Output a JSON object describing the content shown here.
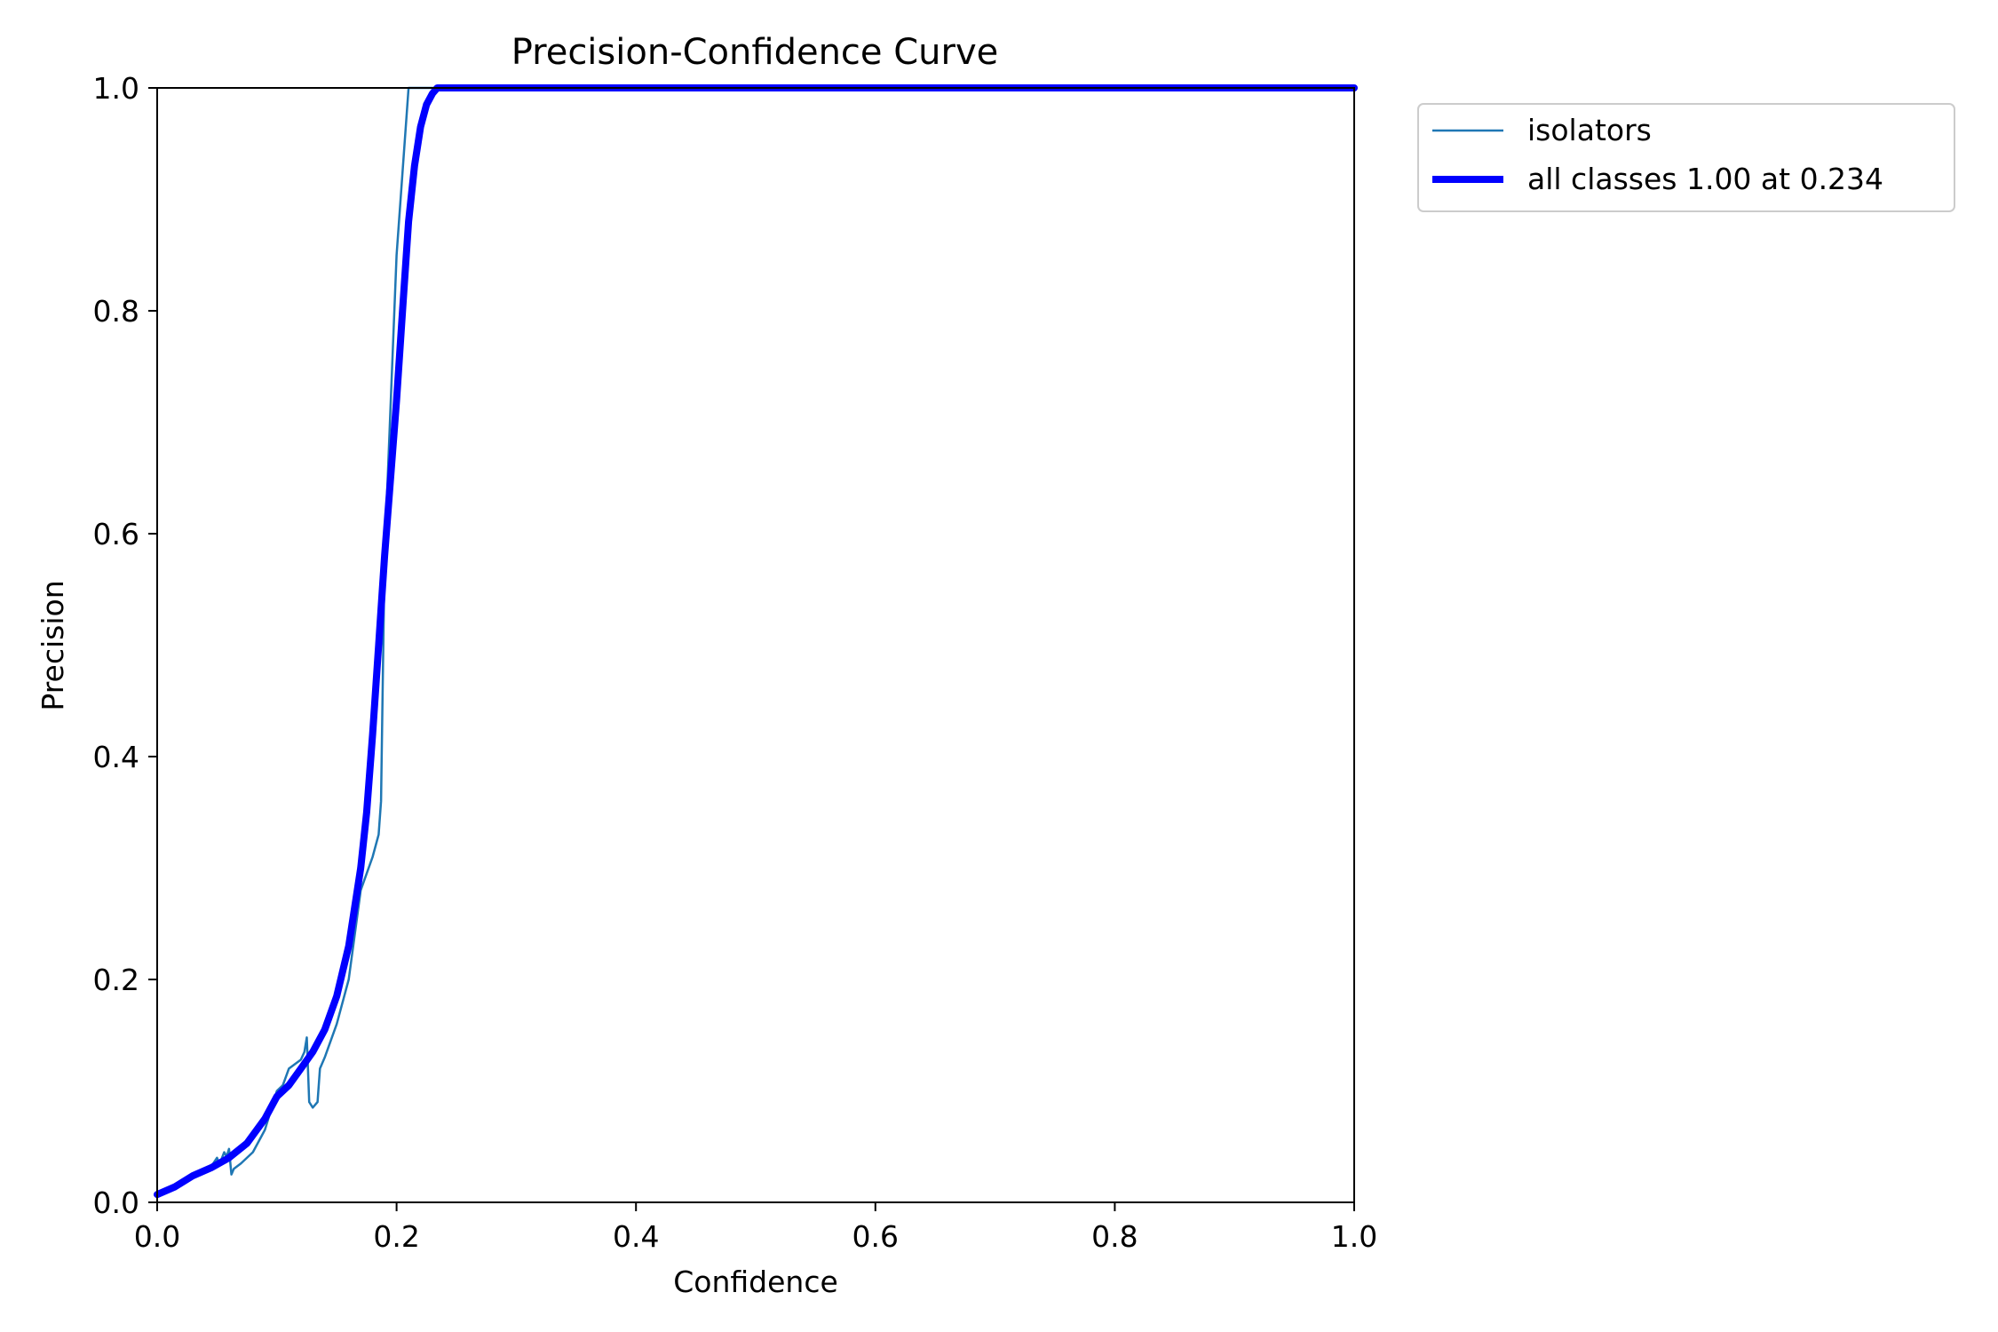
{
  "chart_data": {
    "type": "line",
    "title": "Precision-Confidence Curve",
    "xlabel": "Confidence",
    "ylabel": "Precision",
    "xlim": [
      0.0,
      1.0
    ],
    "ylim": [
      0.0,
      1.0
    ],
    "xticks": [
      "0.0",
      "0.2",
      "0.4",
      "0.6",
      "0.8",
      "1.0"
    ],
    "yticks": [
      "0.0",
      "0.2",
      "0.4",
      "0.6",
      "0.8",
      "1.0"
    ],
    "grid": false,
    "legend_position": "outside-upper-right",
    "series": [
      {
        "name": "isolators",
        "color": "#1f77b4",
        "x": [
          0.0,
          0.02,
          0.035,
          0.045,
          0.05,
          0.052,
          0.056,
          0.058,
          0.06,
          0.062,
          0.064,
          0.07,
          0.08,
          0.09,
          0.1,
          0.105,
          0.11,
          0.12,
          0.123,
          0.125,
          0.127,
          0.13,
          0.134,
          0.136,
          0.14,
          0.15,
          0.16,
          0.17,
          0.18,
          0.185,
          0.187,
          0.19,
          0.2,
          0.21,
          0.215,
          0.25,
          0.5,
          0.75,
          1.0
        ],
        "y": [
          0.005,
          0.015,
          0.025,
          0.032,
          0.04,
          0.034,
          0.045,
          0.041,
          0.048,
          0.025,
          0.03,
          0.035,
          0.045,
          0.065,
          0.1,
          0.105,
          0.12,
          0.128,
          0.135,
          0.148,
          0.09,
          0.085,
          0.09,
          0.12,
          0.13,
          0.16,
          0.2,
          0.28,
          0.31,
          0.33,
          0.36,
          0.58,
          0.85,
          1.0,
          1.0,
          1.0,
          1.0,
          1.0,
          1.0
        ]
      },
      {
        "name": "all classes 1.00 at 0.234",
        "color": "#0000ff",
        "x": [
          0.0,
          0.015,
          0.03,
          0.045,
          0.06,
          0.075,
          0.09,
          0.1,
          0.11,
          0.12,
          0.13,
          0.14,
          0.15,
          0.16,
          0.17,
          0.175,
          0.18,
          0.185,
          0.19,
          0.2,
          0.205,
          0.21,
          0.215,
          0.22,
          0.225,
          0.23,
          0.234,
          0.25,
          0.5,
          0.75,
          1.0
        ],
        "y": [
          0.007,
          0.014,
          0.024,
          0.031,
          0.04,
          0.053,
          0.075,
          0.095,
          0.105,
          0.12,
          0.135,
          0.155,
          0.185,
          0.23,
          0.3,
          0.35,
          0.42,
          0.5,
          0.58,
          0.72,
          0.8,
          0.88,
          0.93,
          0.965,
          0.985,
          0.995,
          1.0,
          1.0,
          1.0,
          1.0,
          1.0
        ]
      }
    ]
  }
}
